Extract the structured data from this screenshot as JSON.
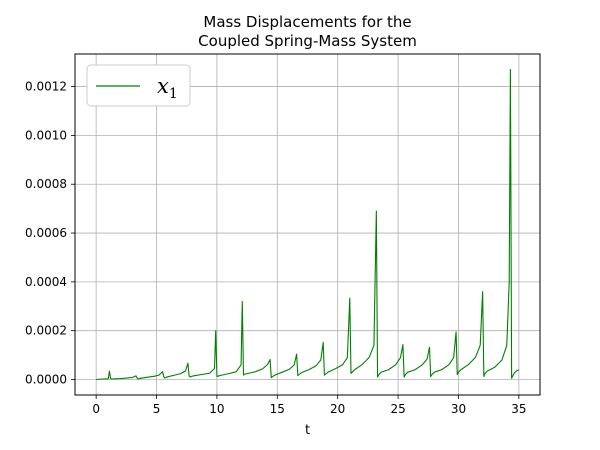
{
  "chart_data": {
    "type": "line",
    "title_lines": [
      "Mass Displacements for the",
      "Coupled Spring-Mass System"
    ],
    "xlabel": "t",
    "ylabel": "",
    "xlim": [
      -1.75,
      36.75
    ],
    "ylim": [
      -6.35e-05,
      0.0013335
    ],
    "xticks": [
      0,
      5,
      10,
      15,
      20,
      25,
      30,
      35
    ],
    "xtick_labels": [
      "0",
      "5",
      "10",
      "15",
      "20",
      "25",
      "30",
      "35"
    ],
    "yticks": [
      0,
      0.0002,
      0.0004,
      0.0006,
      0.0008,
      0.001,
      0.0012
    ],
    "ytick_labels": [
      "0.0000",
      "0.0002",
      "0.0004",
      "0.0006",
      "0.0008",
      "0.0010",
      "0.0012"
    ],
    "grid": true,
    "legend_position": "upper-left",
    "series": [
      {
        "name": "x",
        "name_subscript": "1",
        "color": "#008000",
        "x": [
          0.0,
          0.5,
          1.0,
          1.1,
          1.2,
          1.3,
          1.6,
          2.0,
          2.5,
          3.0,
          3.3,
          3.4,
          3.5,
          3.8,
          4.2,
          4.8,
          5.2,
          5.5,
          5.6,
          5.7,
          5.8,
          6.0,
          6.5,
          7.0,
          7.4,
          7.6,
          7.7,
          7.8,
          7.9,
          8.2,
          8.8,
          9.4,
          9.8,
          9.9,
          10.0,
          10.1,
          10.4,
          11.0,
          11.6,
          12.0,
          12.1,
          12.2,
          12.3,
          12.6,
          13.2,
          13.8,
          14.2,
          14.4,
          14.5,
          14.6,
          14.8,
          15.4,
          16.0,
          16.4,
          16.6,
          16.7,
          16.8,
          17.0,
          17.6,
          18.2,
          18.6,
          18.8,
          18.9,
          19.0,
          19.2,
          19.8,
          20.4,
          20.8,
          21.0,
          21.1,
          21.2,
          21.4,
          22.0,
          22.6,
          23.0,
          23.2,
          23.3,
          23.4,
          23.6,
          24.2,
          24.8,
          25.2,
          25.4,
          25.5,
          25.6,
          25.8,
          26.4,
          27.0,
          27.4,
          27.6,
          27.7,
          27.8,
          28.0,
          28.6,
          29.2,
          29.6,
          29.8,
          29.9,
          30.0,
          30.2,
          30.8,
          31.4,
          31.8,
          32.0,
          32.1,
          32.2,
          32.4,
          33.0,
          33.6,
          34.0,
          34.2,
          34.3,
          34.4,
          34.6,
          34.8,
          35.0
        ],
        "y": [
          0.0,
          2e-06,
          3e-06,
          3.4e-05,
          4e-06,
          2e-06,
          3e-06,
          4e-06,
          6e-06,
          8e-06,
          1.5e-05,
          5e-06,
          3e-06,
          6e-06,
          9e-06,
          1.3e-05,
          1.8e-05,
          3.2e-05,
          1.2e-05,
          6e-06,
          9e-06,
          1.2e-05,
          1.8e-05,
          2.4e-05,
          3.5e-05,
          6.7e-05,
          1.4e-05,
          1e-05,
          1.3e-05,
          1.6e-05,
          2.1e-05,
          2.6e-05,
          4.5e-05,
          0.0002,
          1.2e-05,
          1.4e-05,
          1.8e-05,
          2.4e-05,
          3.2e-05,
          6e-05,
          0.00032,
          1.8e-05,
          2.2e-05,
          2.5e-05,
          3.2e-05,
          4.4e-05,
          6.2e-05,
          8.2e-05,
          8e-06,
          1.2e-05,
          1.8e-05,
          3e-05,
          4.2e-05,
          6e-05,
          0.000104,
          1.6e-05,
          2e-05,
          2.8e-05,
          4e-05,
          5.6e-05,
          8e-05,
          0.000152,
          1.8e-05,
          2.2e-05,
          3e-05,
          4.4e-05,
          6e-05,
          9e-05,
          0.000333,
          2.5e-05,
          3e-05,
          4e-05,
          6e-05,
          9e-05,
          0.00014,
          0.00069,
          1e-05,
          2e-05,
          3e-05,
          4e-05,
          6e-05,
          9e-05,
          0.000143,
          1e-05,
          2e-05,
          3e-05,
          4e-05,
          6e-05,
          8.4e-05,
          0.000132,
          1.2e-05,
          2e-05,
          3e-05,
          4e-05,
          6e-05,
          9e-05,
          0.000195,
          2e-05,
          3e-05,
          4e-05,
          6e-05,
          9e-05,
          0.00014,
          0.00036,
          1.2e-05,
          2.5e-05,
          3.5e-05,
          5e-05,
          8e-05,
          0.00014,
          0.0004,
          0.00127,
          5e-06,
          2.5e-05,
          3.5e-05,
          4e-05
        ]
      }
    ]
  }
}
